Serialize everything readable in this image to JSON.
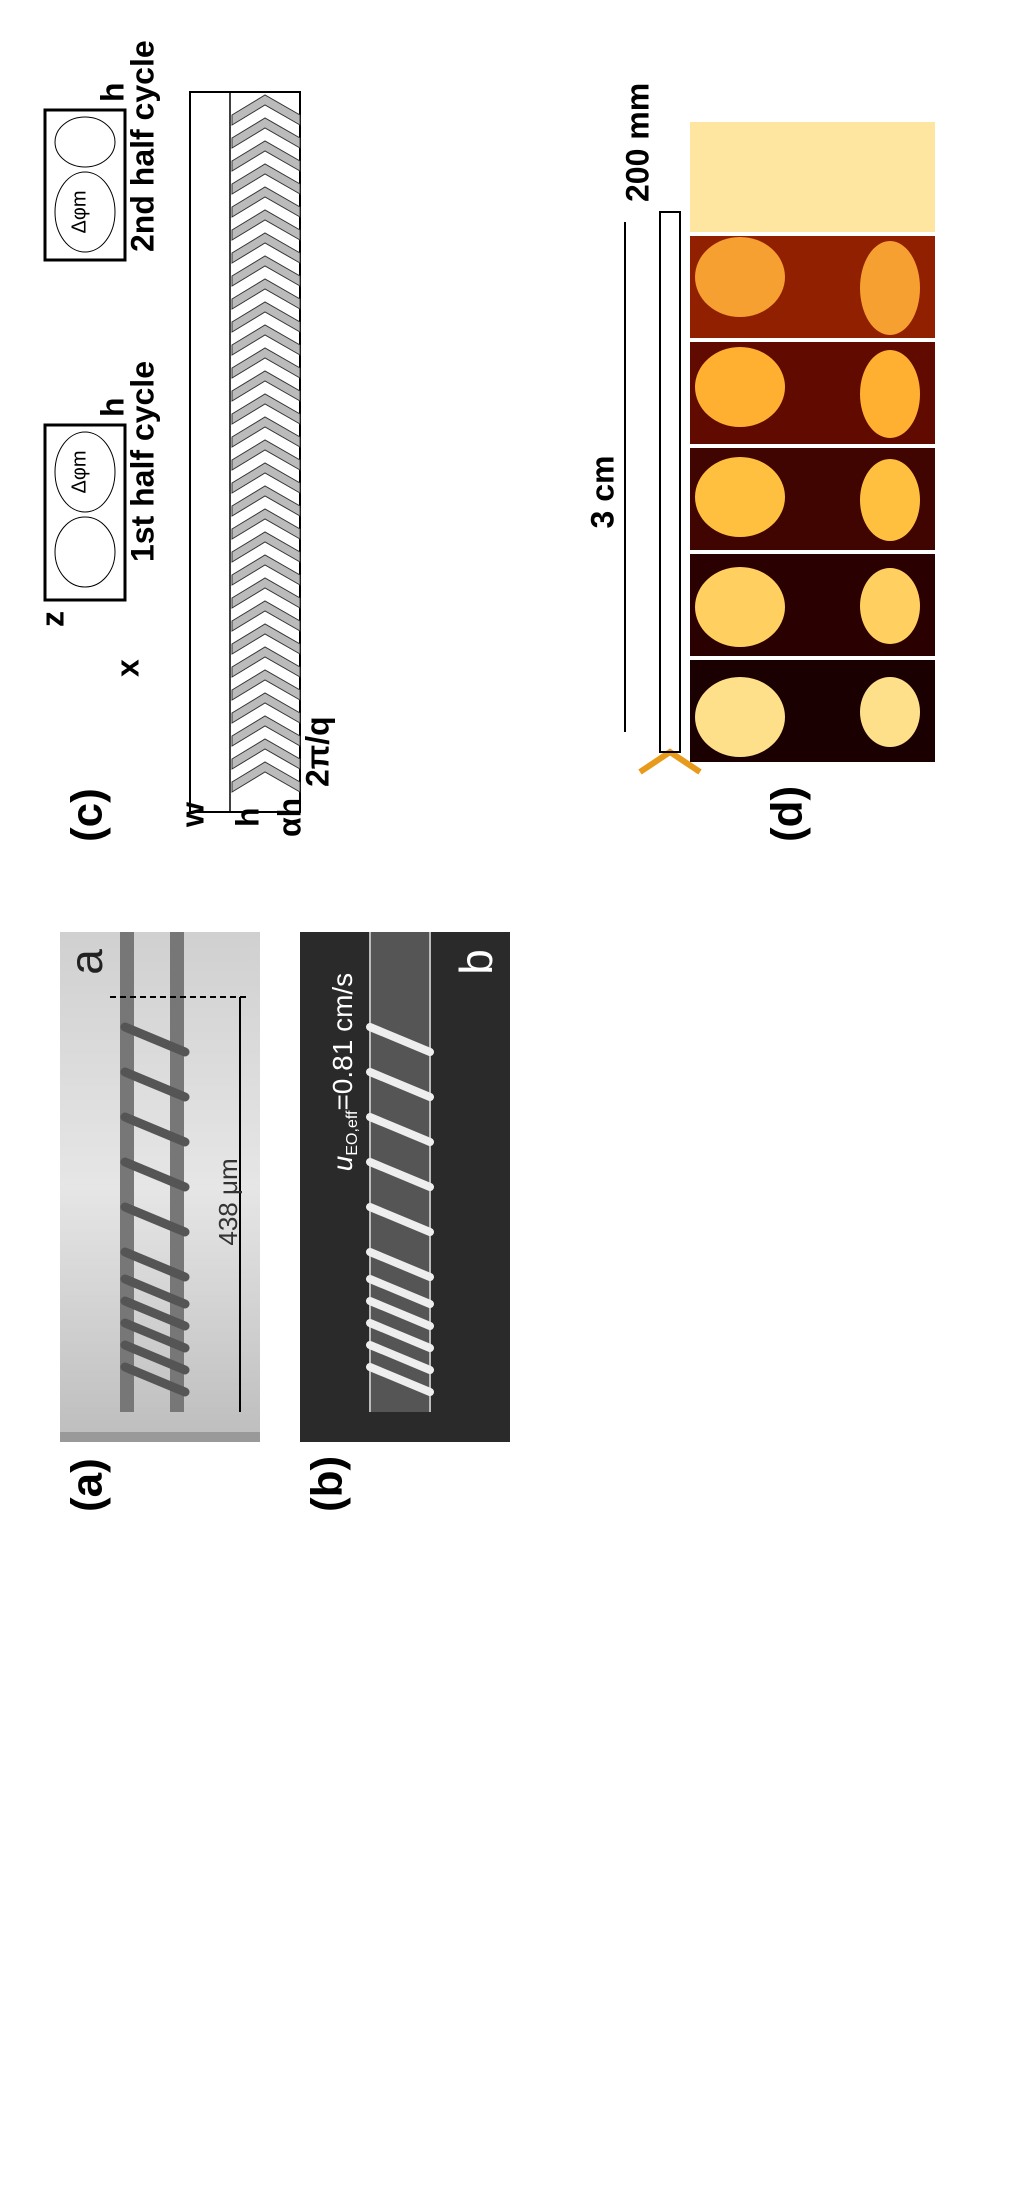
{
  "panels": {
    "a": {
      "label": "(a)",
      "tag": "a",
      "scale": "438 μm"
    },
    "b": {
      "label": "(b)",
      "tag": "b",
      "velocity": "u",
      "velocity_sub": "EO,eff",
      "velocity_value": "=0.81 cm/s"
    },
    "c": {
      "label": "(c)",
      "first": "1st half cycle",
      "second": "2nd half cycle",
      "axis_z": "z",
      "axis_x": "x",
      "dim_w": "w",
      "dim_h": "h",
      "dim_ah": "αh",
      "dim_q": "2π/q",
      "inset_h": "h",
      "inset_phase": "Δφm"
    },
    "d": {
      "label": "(d)",
      "length": "3 cm",
      "width": "200 mm"
    }
  }
}
